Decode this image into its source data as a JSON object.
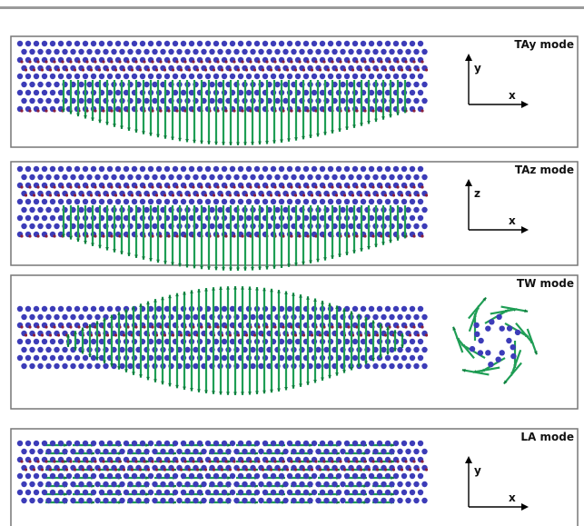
{
  "panels": [
    {
      "label": "TAy mode",
      "axes": {
        "vertical": "y",
        "horizontal": "x"
      }
    },
    {
      "label": "TAz mode",
      "axes": {
        "vertical": "z",
        "horizontal": "x"
      }
    },
    {
      "label": "TW mode"
    },
    {
      "label": "LA mode",
      "axes": {
        "vertical": "y",
        "horizontal": "x"
      }
    }
  ]
}
